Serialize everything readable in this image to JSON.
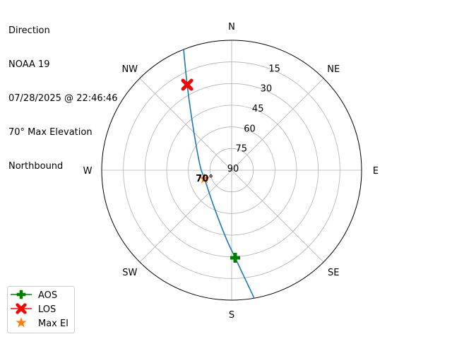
{
  "info": {
    "lines": [
      "Direction",
      "NOAA 19",
      "07/28/2025 @ 22:46:46",
      "70° Max Elevation",
      "Northbound"
    ]
  },
  "chart_data": {
    "type": "polar",
    "theta_direction": "clockwise",
    "theta_zero": "north",
    "direction_labels": [
      {
        "label": "N",
        "az": 0
      },
      {
        "label": "NE",
        "az": 45
      },
      {
        "label": "E",
        "az": 90
      },
      {
        "label": "SE",
        "az": 135
      },
      {
        "label": "S",
        "az": 180
      },
      {
        "label": "SW",
        "az": 225
      },
      {
        "label": "W",
        "az": 270
      },
      {
        "label": "NW",
        "az": 315
      }
    ],
    "radial_ticks": [
      15,
      30,
      45,
      60,
      75,
      90
    ],
    "radial_range": [
      90,
      0
    ],
    "grid": true,
    "track": {
      "color": "#1f77b4",
      "points": [
        {
          "az": 338.3,
          "el": 0
        },
        {
          "az": 332.5,
          "el": 23.3
        },
        {
          "az": 319.3,
          "el": 48.7
        },
        {
          "az": 280.1,
          "el": 67.6
        },
        {
          "az": 252.5,
          "el": 70.3
        },
        {
          "az": 205.7,
          "el": 61.8
        },
        {
          "az": 184.8,
          "el": 42.9
        },
        {
          "az": 177.7,
          "el": 29.3
        },
        {
          "az": 170.0,
          "el": 0
        }
      ]
    },
    "markers": [
      {
        "name": "AOS",
        "az": 177.7,
        "el": 29.3,
        "color": "#008000",
        "shape": "plus"
      },
      {
        "name": "LOS",
        "az": 332.5,
        "el": 23.3,
        "color": "#ff0000",
        "shape": "x"
      },
      {
        "name": "Max El",
        "az": 252.5,
        "el": 70.3,
        "color": "#ff7f0e",
        "shape": "star"
      }
    ],
    "annotation": {
      "text": "70°",
      "az": 252.5,
      "el": 70.3
    },
    "legend": {
      "position": "lower-left",
      "entries": [
        "AOS",
        "LOS",
        "Max El"
      ]
    }
  }
}
